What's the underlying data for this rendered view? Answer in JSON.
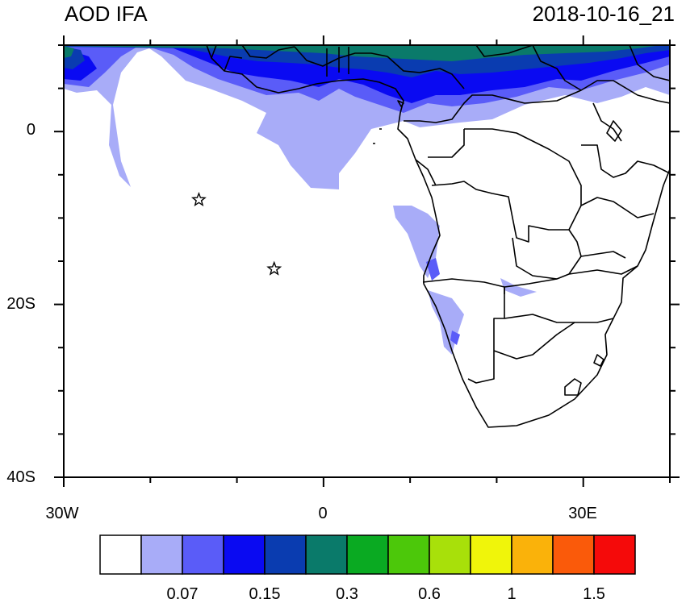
{
  "header": {
    "title": "AOD IFA",
    "timestamp": "2018-10-16_21"
  },
  "axes": {
    "x_ticks": [
      {
        "label": "30W",
        "lon": -30
      },
      {
        "label": "0",
        "lon": 0
      },
      {
        "label": "30E",
        "lon": 30
      }
    ],
    "y_ticks": [
      {
        "label": "0",
        "lat": 0
      },
      {
        "label": "20S",
        "lat": -20
      },
      {
        "label": "40S",
        "lat": -40
      }
    ],
    "lon_range": [
      -30,
      40
    ],
    "lat_range": [
      -40,
      10
    ]
  },
  "markers": [
    {
      "type": "star",
      "lon": -14.4,
      "lat": -7.9
    },
    {
      "type": "star",
      "lon": -5.7,
      "lat": -15.9
    }
  ],
  "colorbar": {
    "colors": [
      "#ffffff",
      "#a8acf8",
      "#5a5cf8",
      "#0a0af2",
      "#0a3cb0",
      "#0a7a6a",
      "#0aaa22",
      "#4cc80a",
      "#a8e00a",
      "#f0f50a",
      "#fab20a",
      "#fa5a0a",
      "#f50a0a"
    ],
    "labels": [
      {
        "text": "0.07",
        "after_box": 2
      },
      {
        "text": "0.15",
        "after_box": 4
      },
      {
        "text": "0.3",
        "after_box": 6
      },
      {
        "text": "0.6",
        "after_box": 8
      },
      {
        "text": "1",
        "after_box": 10
      },
      {
        "text": "1.5",
        "after_box": 12
      }
    ]
  }
}
